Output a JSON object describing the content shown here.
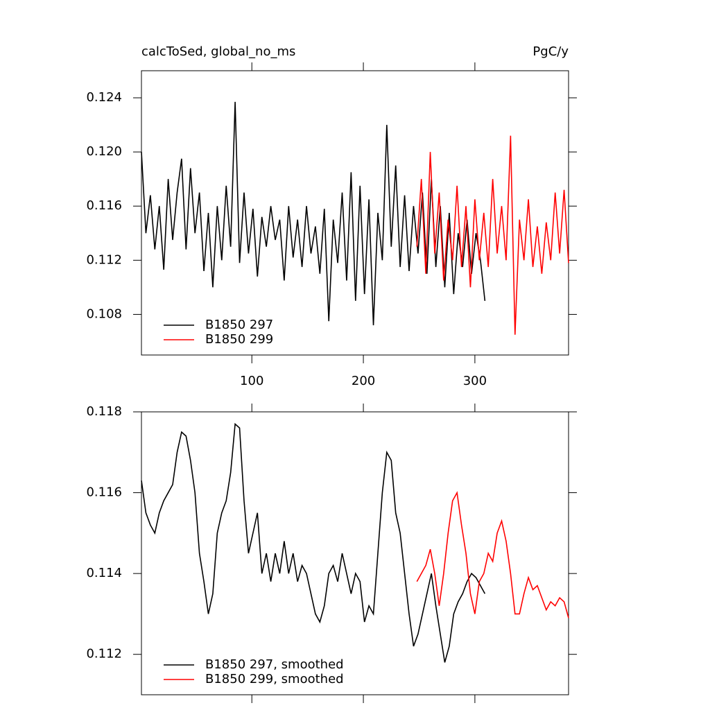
{
  "chart_data": [
    {
      "type": "line",
      "title": "calcToSed, global_no_ms",
      "units": "PgC/y",
      "xlim": [
        1,
        384
      ],
      "xticks": [
        100,
        200,
        300
      ],
      "ylim": [
        0.105,
        0.126
      ],
      "yticks": [
        0.108,
        {
          "value": 0.12,
          "label": "0.120"
        },
        0.112,
        0.116,
        0.124
      ],
      "legend": "lower left",
      "series": [
        {
          "name": "B1850 297",
          "color": "#000000",
          "x": [
            1,
            5,
            9,
            13,
            17,
            21,
            25,
            29,
            33,
            37,
            41,
            45,
            49,
            53,
            57,
            61,
            65,
            69,
            73,
            77,
            81,
            85,
            89,
            93,
            97,
            101,
            105,
            109,
            113,
            117,
            121,
            125,
            129,
            133,
            137,
            141,
            145,
            149,
            153,
            157,
            161,
            165,
            169,
            173,
            177,
            181,
            185,
            189,
            193,
            197,
            201,
            205,
            209,
            213,
            217,
            221,
            225,
            229,
            233,
            237,
            241,
            245,
            249,
            253,
            257,
            261,
            265,
            269,
            273,
            277,
            281,
            285,
            289,
            293,
            297,
            301,
            305,
            309
          ],
          "values": [
            0.12,
            0.114,
            0.1168,
            0.1128,
            0.116,
            0.1113,
            0.118,
            0.1135,
            0.117,
            0.1195,
            0.1128,
            0.1188,
            0.114,
            0.117,
            0.1112,
            0.1155,
            0.11,
            0.116,
            0.112,
            0.1175,
            0.113,
            0.1237,
            0.1118,
            0.117,
            0.1125,
            0.1158,
            0.1108,
            0.1152,
            0.113,
            0.116,
            0.1135,
            0.115,
            0.1105,
            0.116,
            0.1122,
            0.115,
            0.1115,
            0.116,
            0.1125,
            0.1145,
            0.111,
            0.1158,
            0.1075,
            0.115,
            0.1118,
            0.117,
            0.1105,
            0.1185,
            0.109,
            0.1175,
            0.1095,
            0.1165,
            0.1072,
            0.1155,
            0.112,
            0.122,
            0.113,
            0.119,
            0.1115,
            0.1168,
            0.1112,
            0.116,
            0.1125,
            0.117,
            0.111,
            0.118,
            0.1115,
            0.116,
            0.11,
            0.1155,
            0.1095,
            0.114,
            0.1115,
            0.115,
            0.111,
            0.114,
            0.112,
            0.109
          ]
        },
        {
          "name": "B1850 299",
          "color": "#ff0000",
          "x": [
            248,
            252,
            256,
            260,
            264,
            268,
            272,
            276,
            280,
            284,
            288,
            292,
            296,
            300,
            304,
            308,
            312,
            316,
            320,
            324,
            328,
            332,
            336,
            340,
            344,
            348,
            352,
            356,
            360,
            364,
            368,
            372,
            376,
            380,
            384
          ],
          "values": [
            0.113,
            0.118,
            0.111,
            0.12,
            0.1125,
            0.117,
            0.1105,
            0.115,
            0.112,
            0.1175,
            0.1115,
            0.116,
            0.11,
            0.1165,
            0.112,
            0.1155,
            0.1115,
            0.118,
            0.1125,
            0.116,
            0.112,
            0.1212,
            0.1065,
            0.115,
            0.112,
            0.1165,
            0.1115,
            0.1145,
            0.111,
            0.1148,
            0.112,
            0.117,
            0.1125,
            0.1172,
            0.1118
          ]
        }
      ]
    },
    {
      "type": "line",
      "xlim": [
        1,
        384
      ],
      "ylim": [
        0.111,
        0.118
      ],
      "yticks": [
        0.112,
        0.114,
        0.116,
        0.118
      ],
      "legend": "lower left",
      "series": [
        {
          "name": "B1850 297, smoothed",
          "color": "#000000",
          "x": [
            1,
            5,
            9,
            13,
            17,
            21,
            25,
            29,
            33,
            37,
            41,
            45,
            49,
            53,
            57,
            61,
            65,
            69,
            73,
            77,
            81,
            85,
            89,
            93,
            97,
            101,
            105,
            109,
            113,
            117,
            121,
            125,
            129,
            133,
            137,
            141,
            145,
            149,
            153,
            157,
            161,
            165,
            169,
            173,
            177,
            181,
            185,
            189,
            193,
            197,
            201,
            205,
            209,
            213,
            217,
            221,
            225,
            229,
            233,
            237,
            241,
            245,
            249,
            253,
            257,
            261,
            265,
            269,
            273,
            277,
            281,
            285,
            289,
            293,
            297,
            301,
            305,
            309
          ],
          "values": [
            0.1163,
            0.1155,
            0.1152,
            0.115,
            0.1155,
            0.1158,
            0.116,
            0.1162,
            0.117,
            0.1175,
            0.1174,
            0.1168,
            0.116,
            0.1145,
            0.1138,
            0.113,
            0.1135,
            0.115,
            0.1155,
            0.1158,
            0.1165,
            0.1177,
            0.1176,
            0.1158,
            0.1145,
            0.115,
            0.1155,
            0.114,
            0.1145,
            0.1138,
            0.1145,
            0.114,
            0.1148,
            0.114,
            0.1145,
            0.1138,
            0.1142,
            0.114,
            0.1135,
            0.113,
            0.1128,
            0.1132,
            0.114,
            0.1142,
            0.1138,
            0.1145,
            0.114,
            0.1135,
            0.114,
            0.1138,
            0.1128,
            0.1132,
            0.113,
            0.1145,
            0.116,
            0.117,
            0.1168,
            0.1155,
            0.115,
            0.114,
            0.113,
            0.1122,
            0.1125,
            0.113,
            0.1135,
            0.114,
            0.1132,
            0.1125,
            0.1118,
            0.1122,
            0.113,
            0.1133,
            0.1135,
            0.1138,
            0.114,
            0.1139,
            0.1137,
            0.1135
          ]
        },
        {
          "name": "B1850 299, smoothed",
          "color": "#ff0000",
          "x": [
            248,
            252,
            256,
            260,
            264,
            268,
            272,
            276,
            280,
            284,
            288,
            292,
            296,
            300,
            304,
            308,
            312,
            316,
            320,
            324,
            328,
            332,
            336,
            340,
            344,
            348,
            352,
            356,
            360,
            364,
            368,
            372,
            376,
            380,
            384
          ],
          "values": [
            0.1138,
            0.114,
            0.1142,
            0.1146,
            0.114,
            0.1132,
            0.114,
            0.115,
            0.1158,
            0.116,
            0.1152,
            0.1145,
            0.1135,
            0.113,
            0.1138,
            0.114,
            0.1145,
            0.1143,
            0.115,
            0.1153,
            0.1148,
            0.114,
            0.113,
            0.113,
            0.1135,
            0.1139,
            0.1136,
            0.1137,
            0.1134,
            0.1131,
            0.1133,
            0.1132,
            0.1134,
            0.1133,
            0.1129
          ]
        }
      ]
    }
  ]
}
